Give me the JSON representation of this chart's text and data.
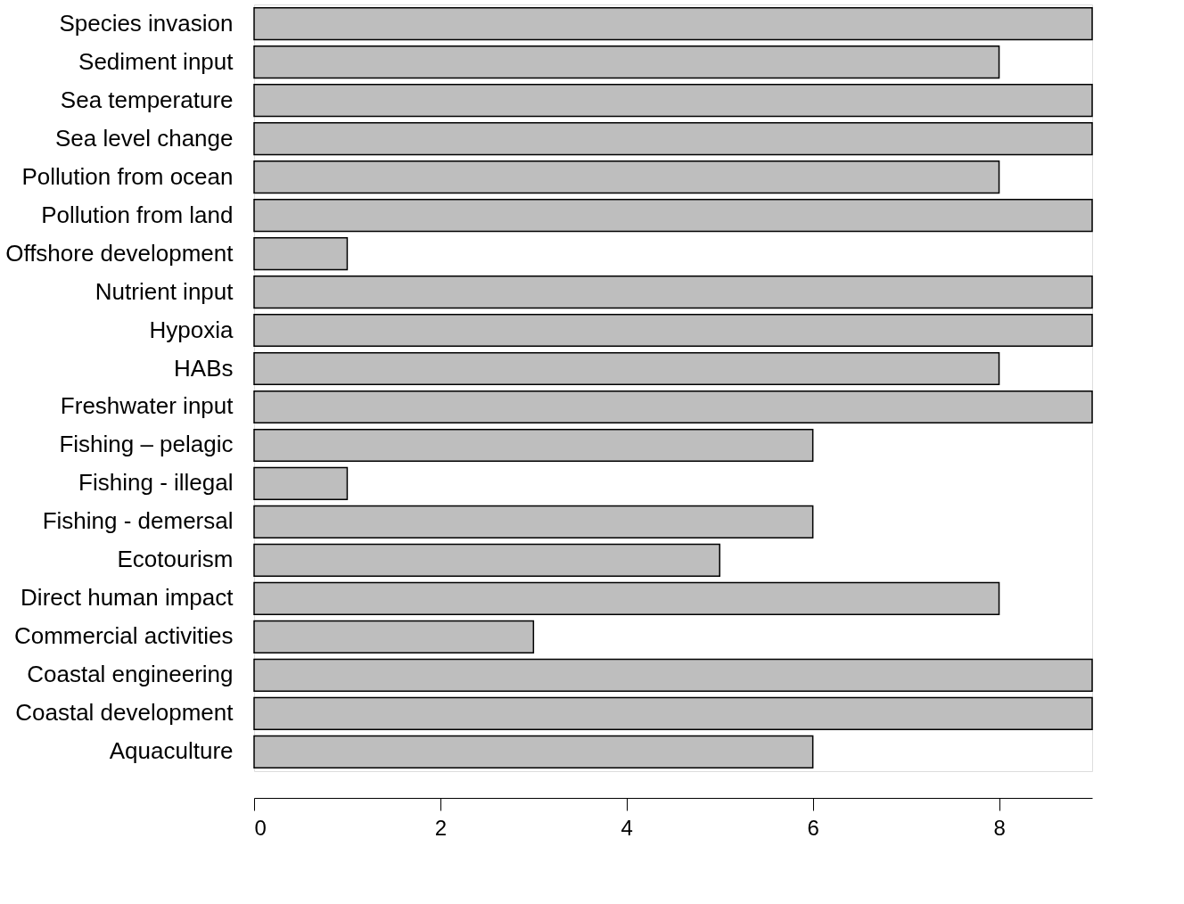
{
  "chart_data": {
    "type": "bar",
    "orientation": "horizontal",
    "categories": [
      "Species invasion",
      "Sediment input",
      "Sea temperature",
      "Sea level change",
      "Pollution from ocean",
      "Pollution from land",
      "Offshore development",
      "Nutrient input",
      "Hypoxia",
      "HABs",
      "Freshwater input",
      "Fishing – pelagic",
      "Fishing - illegal",
      "Fishing - demersal",
      "Ecotourism",
      "Direct human impact",
      "Commercial activities",
      "Coastal engineering",
      "Coastal development",
      "Aquaculture"
    ],
    "values": [
      9,
      8,
      9,
      9,
      8,
      9,
      1,
      9,
      9,
      8,
      9,
      6,
      1,
      6,
      5,
      8,
      3,
      9,
      9,
      6
    ],
    "color": "#bebebe",
    "xlim": [
      0,
      9
    ],
    "xticks": [
      0,
      2,
      4,
      6,
      8
    ],
    "grid": false
  }
}
